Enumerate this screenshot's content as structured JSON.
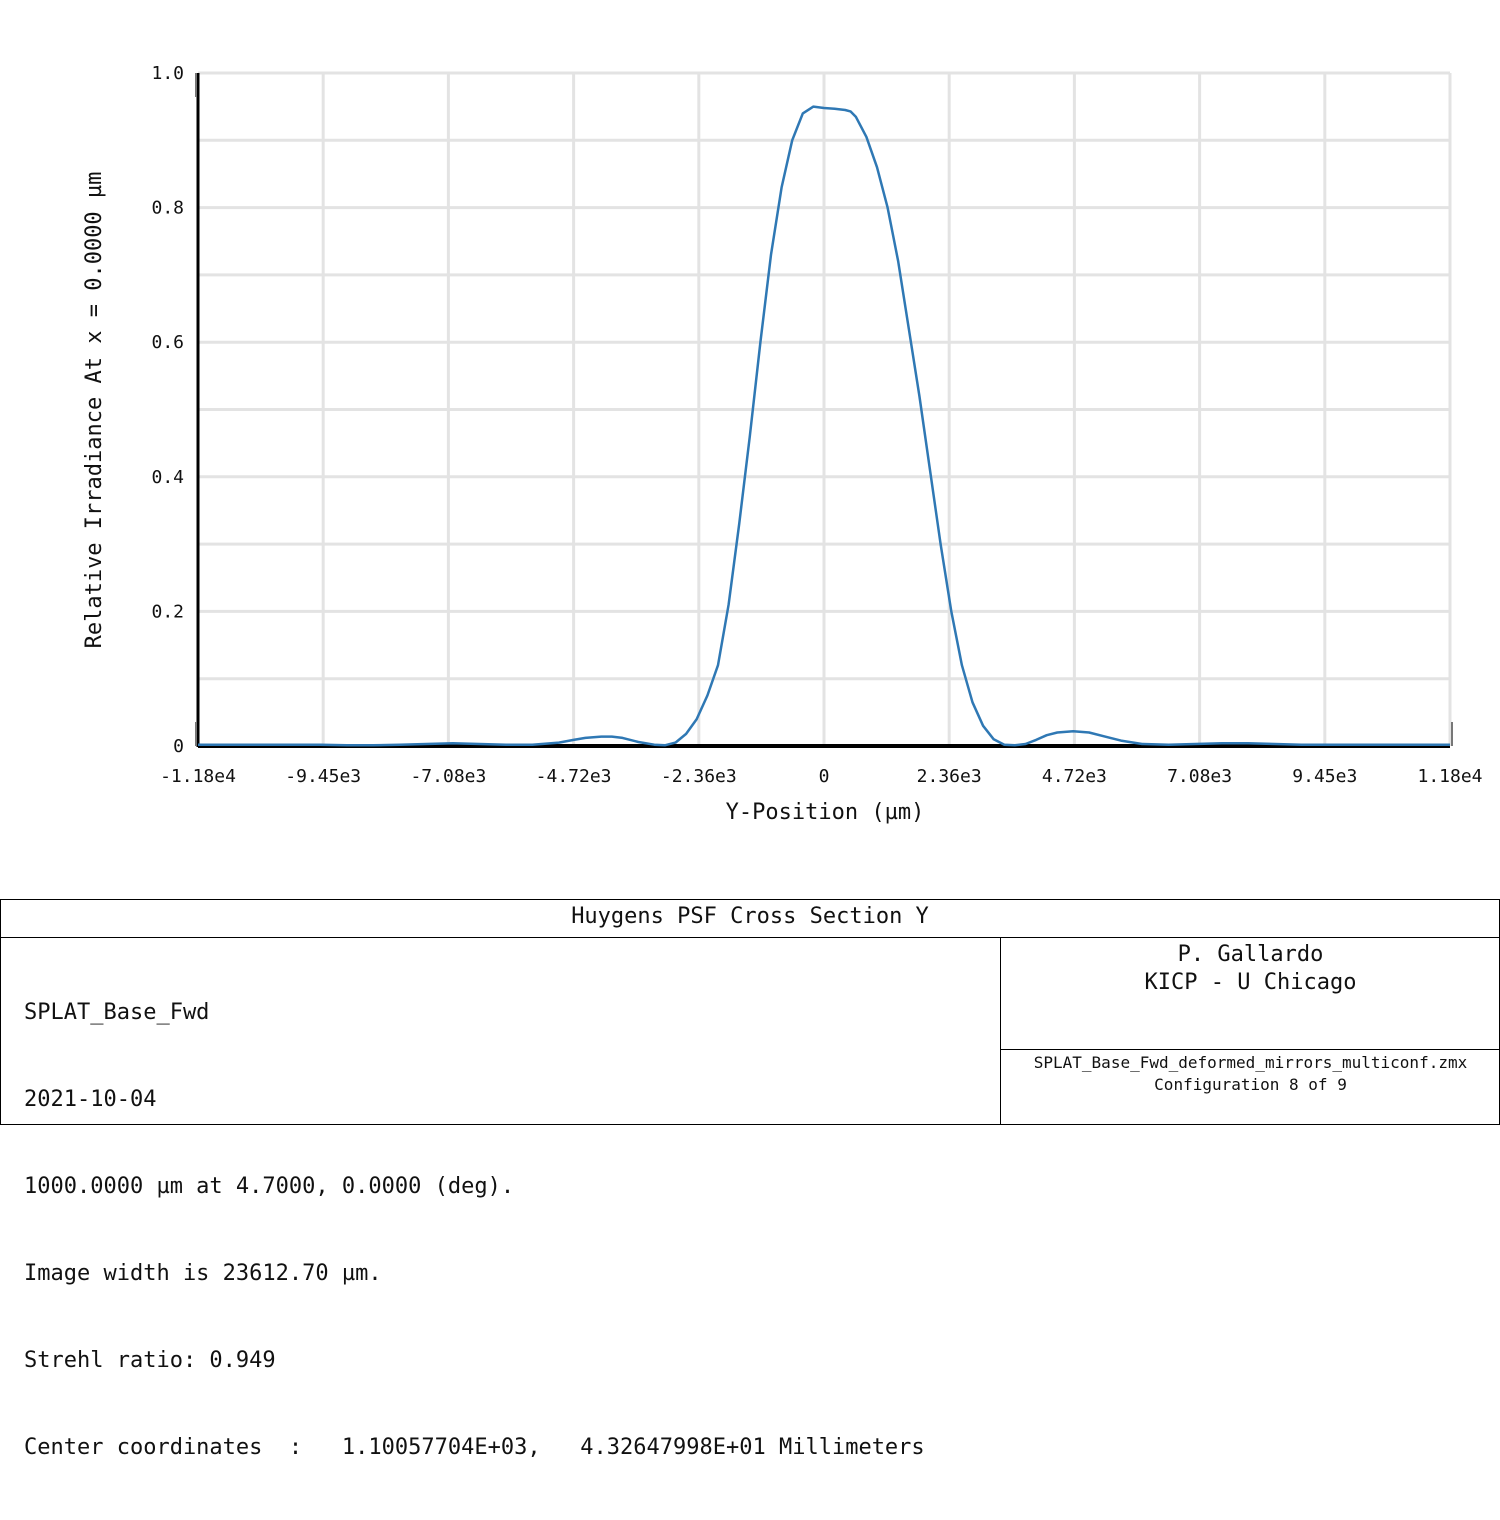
{
  "chart_data": {
    "type": "line",
    "xlabel": "Y-Position (µm)",
    "ylabel": "Relative Irradiance At x = 0.0000 µm",
    "xlim": [
      -11806.35,
      11806.35
    ],
    "ylim": [
      0,
      1.0
    ],
    "x_ticks": [
      -11806.35,
      -9445.08,
      -7083.81,
      -4722.54,
      -2361.27,
      0,
      2361.27,
      4722.54,
      7083.81,
      9445.08,
      11806.35
    ],
    "x_tick_labels": [
      "-1.18e4",
      "-9.45e3",
      "-7.08e3",
      "-4.72e3",
      "-2.36e3",
      "0",
      "2.36e3",
      "4.72e3",
      "7.08e3",
      "9.45e3",
      "1.18e4"
    ],
    "y_ticks": [
      0,
      0.2,
      0.4,
      0.6,
      0.8,
      1.0
    ],
    "y_tick_labels": [
      "0",
      "0.2",
      "0.4",
      "0.6",
      "0.8",
      "1.0"
    ],
    "grid": true,
    "color": "#2f78b4",
    "series": [
      {
        "x": [
          -11806,
          -11000,
          -10000,
          -9500,
          -9000,
          -8500,
          -8000,
          -7500,
          -7000,
          -6500,
          -6000,
          -5500,
          -5000,
          -4722,
          -4500,
          -4200,
          -4000,
          -3800,
          -3500,
          -3200,
          -3000,
          -2800,
          -2600,
          -2400,
          -2200,
          -2000,
          -1800,
          -1600,
          -1400,
          -1200,
          -1000,
          -800,
          -600,
          -400,
          -200,
          0,
          200,
          400,
          500,
          600,
          800,
          1000,
          1200,
          1400,
          1600,
          1800,
          2000,
          2200,
          2400,
          2600,
          2800,
          3000,
          3200,
          3400,
          3600,
          3800,
          4000,
          4200,
          4400,
          4700,
          5000,
          5300,
          5600,
          6000,
          6500,
          7000,
          7500,
          8000,
          8500,
          9000,
          9500,
          10000,
          10500,
          11000,
          11806
        ],
        "y": [
          0.002,
          0.002,
          0.002,
          0.002,
          0.001,
          0.001,
          0.002,
          0.003,
          0.004,
          0.003,
          0.002,
          0.002,
          0.005,
          0.009,
          0.012,
          0.014,
          0.014,
          0.012,
          0.006,
          0.002,
          0.001,
          0.005,
          0.018,
          0.04,
          0.075,
          0.12,
          0.21,
          0.33,
          0.46,
          0.6,
          0.73,
          0.83,
          0.9,
          0.94,
          0.95,
          0.948,
          0.947,
          0.945,
          0.943,
          0.935,
          0.905,
          0.86,
          0.8,
          0.72,
          0.62,
          0.52,
          0.41,
          0.3,
          0.2,
          0.12,
          0.065,
          0.03,
          0.01,
          0.002,
          0.001,
          0.003,
          0.009,
          0.016,
          0.02,
          0.022,
          0.02,
          0.014,
          0.008,
          0.003,
          0.002,
          0.003,
          0.004,
          0.004,
          0.003,
          0.002,
          0.002,
          0.002,
          0.002,
          0.002,
          0.002
        ]
      }
    ]
  },
  "info": {
    "title": "Huygens PSF Cross Section Y",
    "lens_name": "SPLAT_Base_Fwd",
    "date": "2021-10-04",
    "wavelength_field": "1000.0000 µm at 4.7000, 0.0000 (deg).",
    "image_width": "Image width is 23612.70 µm.",
    "strehl": "Strehl ratio: 0.949",
    "center_coords": "Center coordinates  :   1.10057704E+03,   4.32647998E+01 Millimeters",
    "author": "P. Gallardo",
    "affiliation": "KICP - U Chicago",
    "file_name": "SPLAT_Base_Fwd_deformed_mirrors_multiconf.zmx",
    "configuration": "Configuration 8 of 9"
  }
}
